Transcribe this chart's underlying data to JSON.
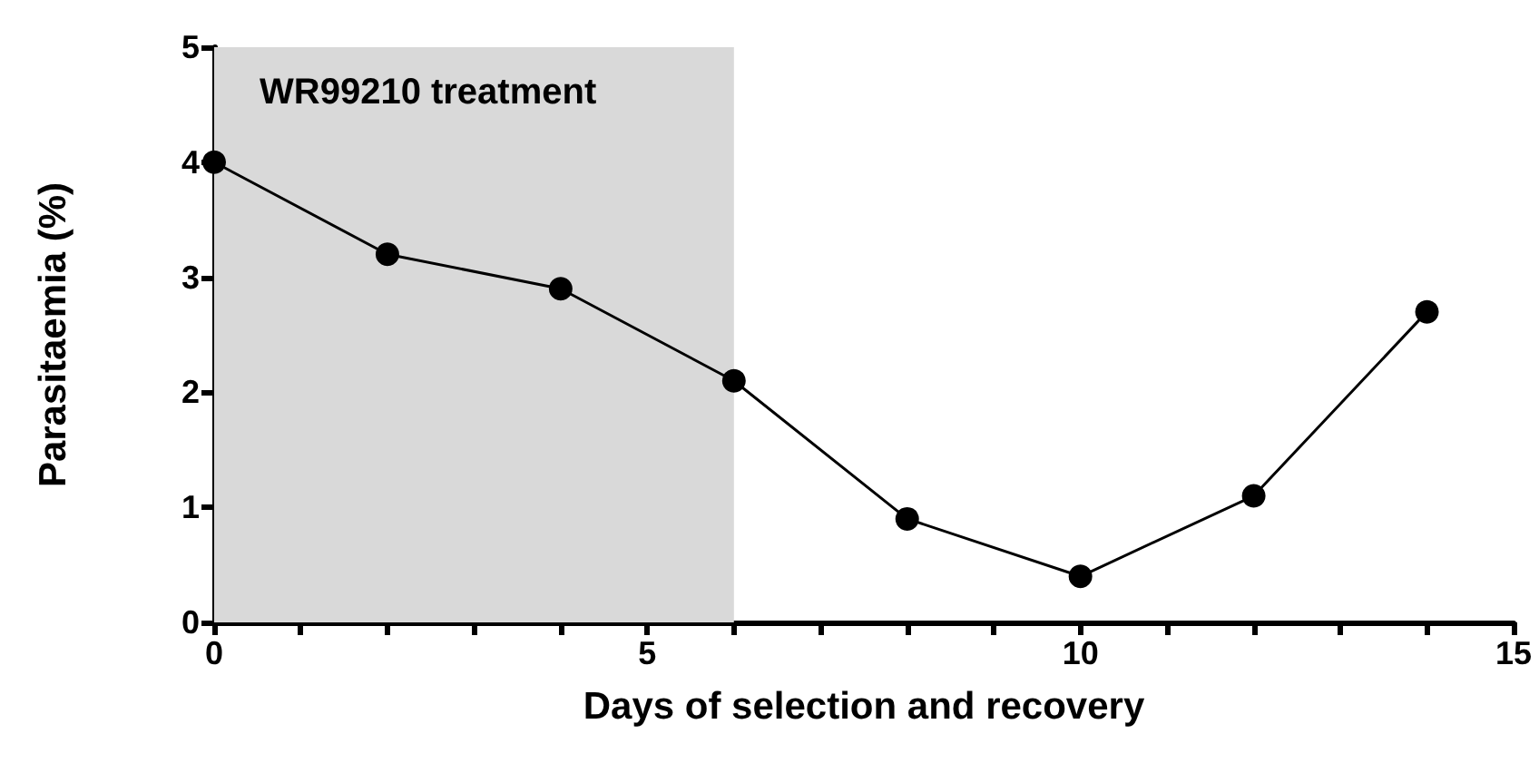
{
  "chart_data": {
    "type": "line",
    "xlabel": "Days of selection and recovery",
    "ylabel": "Parasitaemia (%)",
    "x": [
      0,
      2,
      4,
      6,
      8,
      10,
      12,
      14
    ],
    "series": [
      {
        "color": "#000000",
        "values": [
          4.0,
          3.2,
          2.9,
          2.1,
          0.9,
          0.4,
          1.1,
          2.7
        ]
      }
    ],
    "xlim": [
      0,
      15
    ],
    "xticks": [
      0,
      {
        "value": 1,
        "label": null
      },
      {
        "value": 2,
        "label": null
      },
      {
        "value": 3,
        "label": null
      },
      {
        "value": 4,
        "label": null
      },
      5,
      {
        "value": 6,
        "label": null
      },
      {
        "value": 7,
        "label": null
      },
      {
        "value": 8,
        "label": null
      },
      {
        "value": 9,
        "label": null
      },
      10,
      {
        "value": 11,
        "label": null
      },
      {
        "value": 12,
        "label": null
      },
      {
        "value": 13,
        "label": null
      },
      {
        "value": 14,
        "label": null
      },
      15
    ],
    "ylim": [
      0,
      5
    ],
    "yticks": [
      0,
      1,
      2,
      3,
      4,
      5
    ],
    "bands": [
      {
        "axis": "x",
        "from": 0,
        "to": 6,
        "label": "WR99210 treatment",
        "color": "#d9d9d9"
      }
    ],
    "grid": false,
    "marker": "circle",
    "line_style": "solid"
  }
}
